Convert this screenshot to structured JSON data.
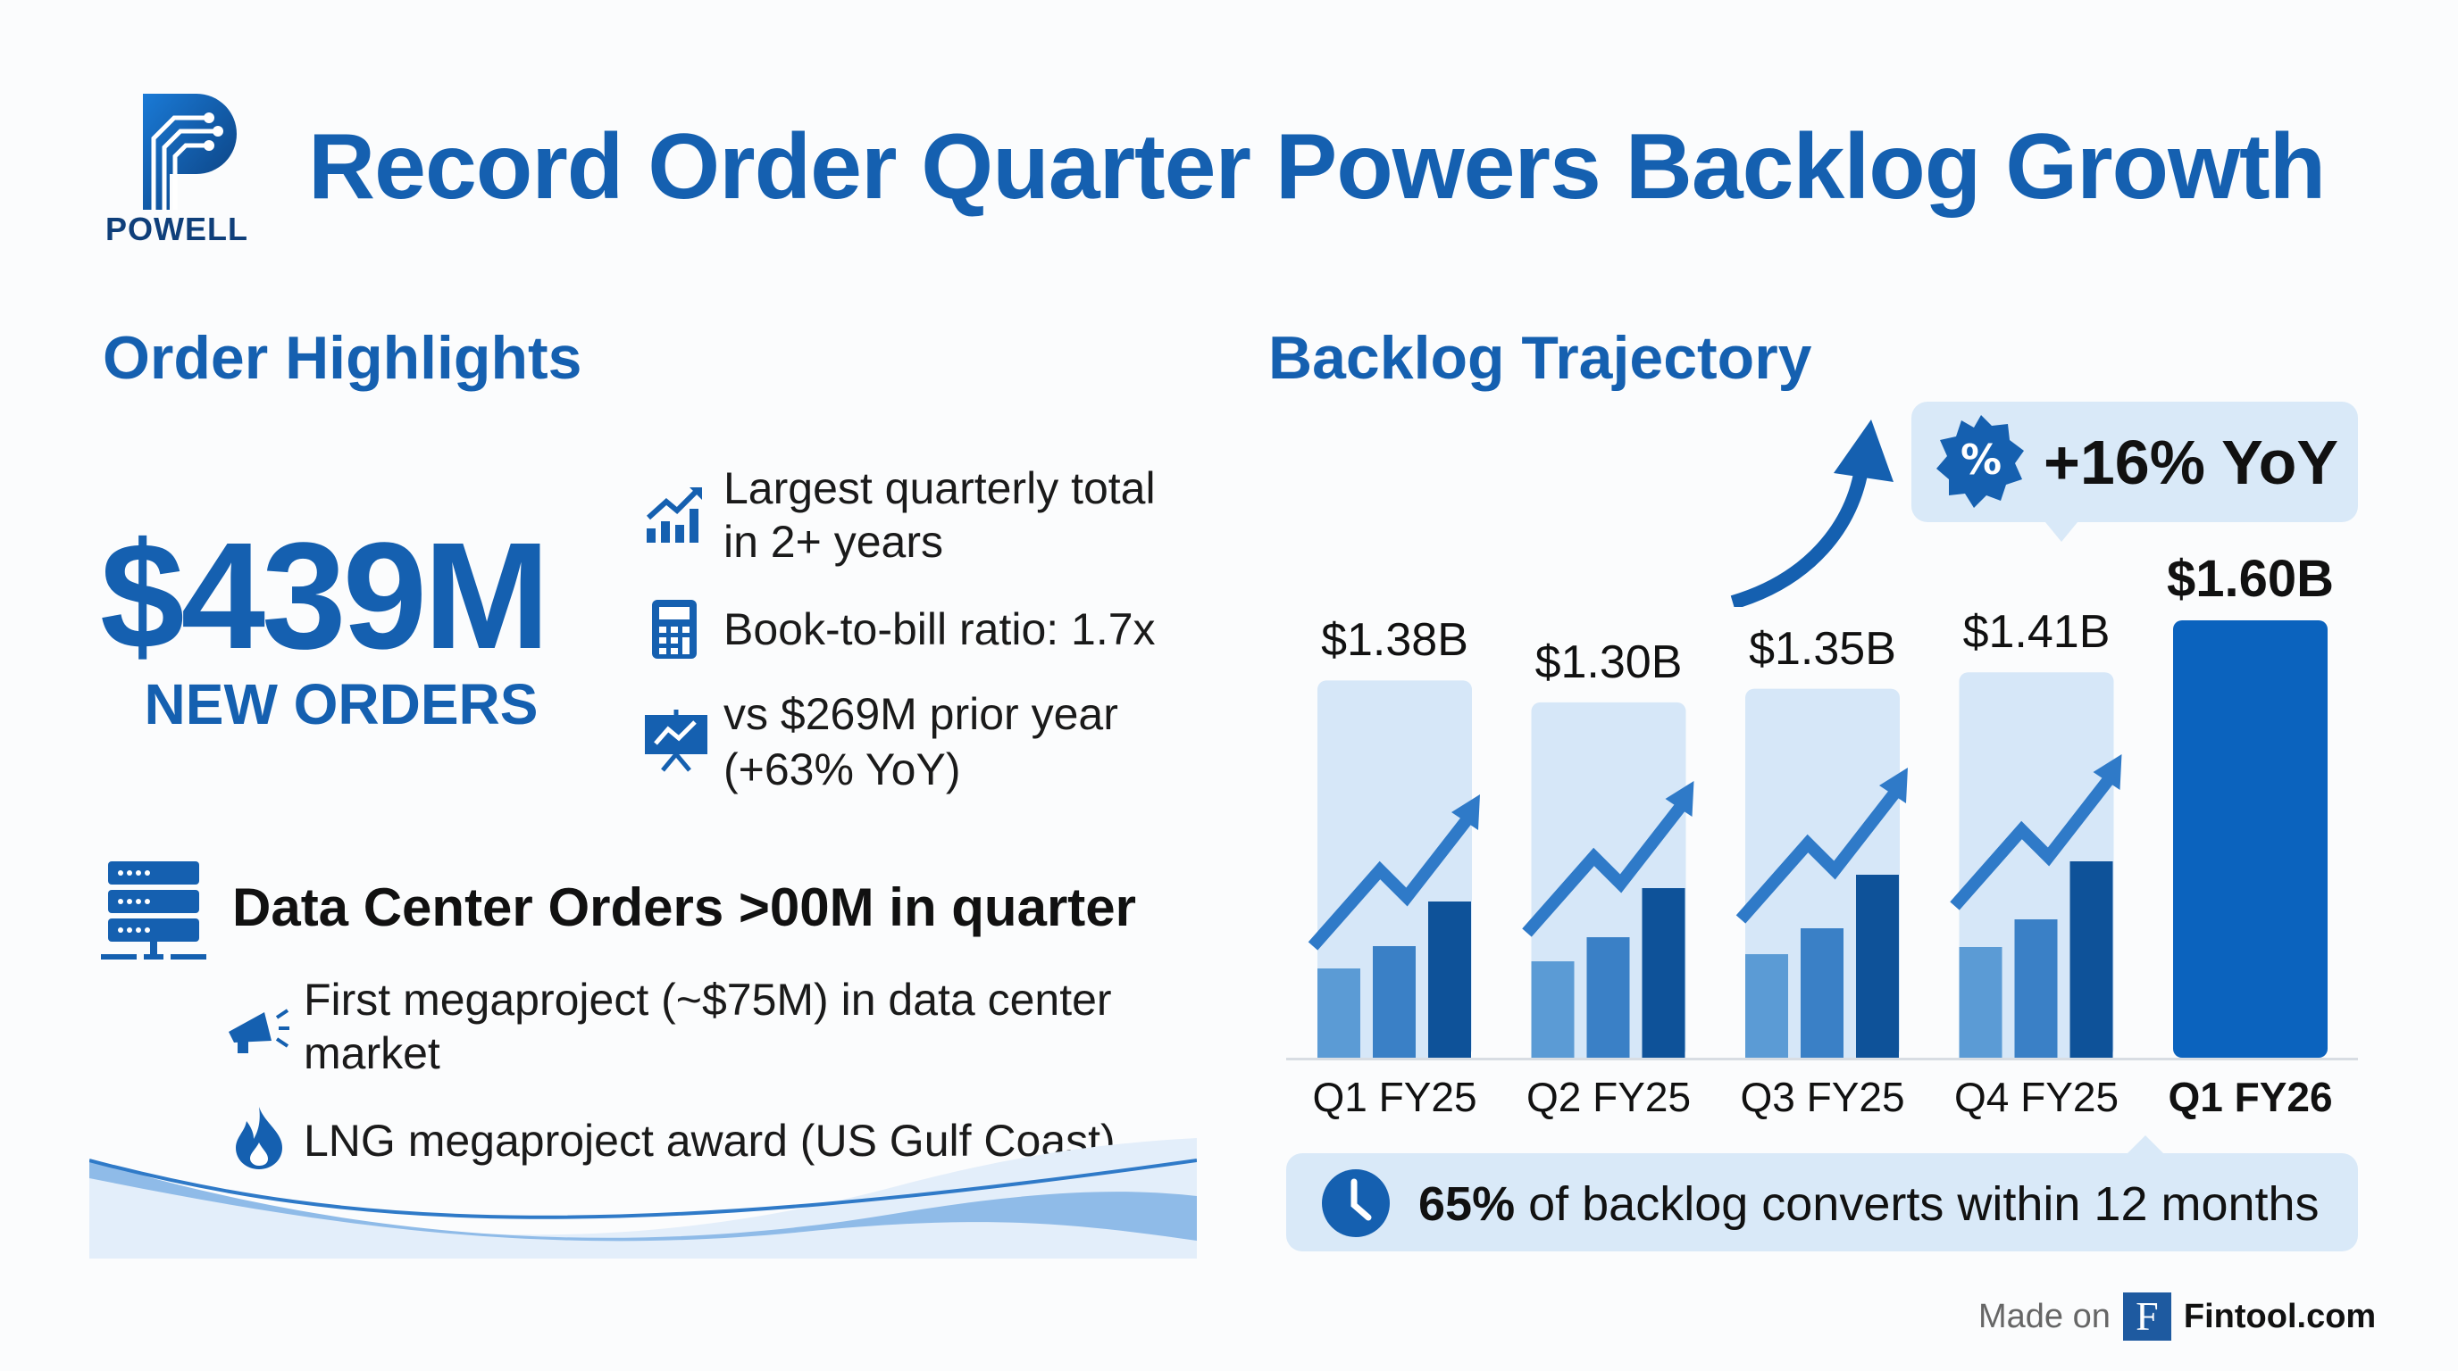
{
  "header": {
    "title": "Record Order Quarter Powers Backlog Growth",
    "logo_text": "POWELL"
  },
  "orders": {
    "heading": "Order Highlights",
    "amount": "$439M",
    "amount_label": "NEW ORDERS",
    "bullets": [
      {
        "icon": "bar-chart-up-icon",
        "line1": "Largest quarterly total",
        "line2": "in 2+ years"
      },
      {
        "icon": "calculator-icon",
        "line1": "Book-to-bill ratio: 1.7x",
        "line2": ""
      },
      {
        "icon": "presentation-chart-icon",
        "line1": "vs $269M prior year",
        "line2": "(+63% YoY)"
      }
    ],
    "data_center": {
      "heading": "Data Center Orders >00M in quarter",
      "items": [
        {
          "icon": "megaphone-icon",
          "line1": "First megaproject (~$75M) in data center",
          "line2": "market"
        },
        {
          "icon": "flame-icon",
          "line1": "LNG megaproject award (US Gulf Coast)",
          "line2": ""
        }
      ]
    }
  },
  "backlog": {
    "heading": "Backlog Trajectory",
    "callout": "+16% YoY",
    "conversion_bold": "65%",
    "conversion_rest": " of backlog converts within 12 months"
  },
  "chart_data": {
    "type": "bar",
    "title": "Backlog Trajectory",
    "categories": [
      "Q1 FY25",
      "Q2 FY25",
      "Q3 FY25",
      "Q4 FY25",
      "Q1 FY26"
    ],
    "values": [
      1.38,
      1.3,
      1.35,
      1.41,
      1.6
    ],
    "data_labels": [
      "$1.38B",
      "$1.30B",
      "$1.35B",
      "$1.41B",
      "$1.60B"
    ],
    "unit": "$B",
    "highlight_index": 4,
    "ylim": [
      0,
      1.6
    ],
    "annotation": "+16% YoY",
    "colors": {
      "highlight": "#0b63be",
      "past": "#d6e7f8",
      "mini": [
        "#5b9bd5",
        "#3a80c6",
        "#0e5299"
      ]
    }
  },
  "footer": {
    "made_on": "Made on",
    "brand_letter": "F",
    "brand": "Fintool.com"
  }
}
